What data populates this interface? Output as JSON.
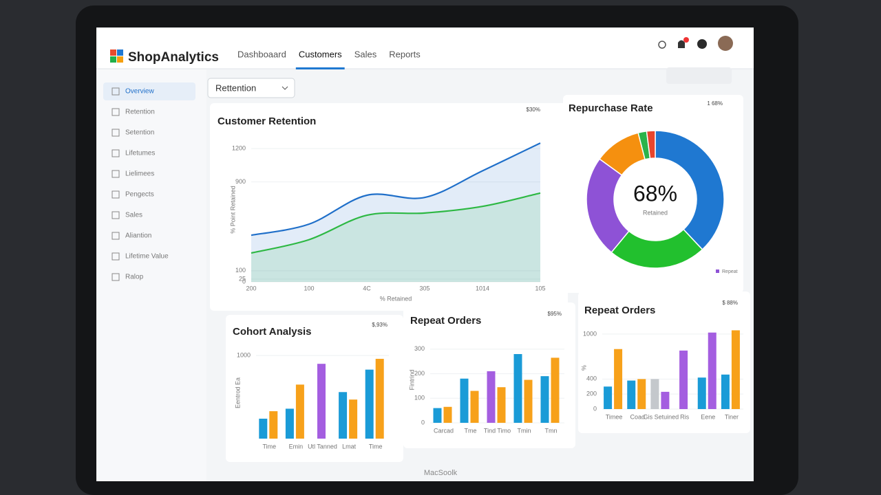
{
  "app": {
    "brand": "ShopAnalytics",
    "nav": [
      "Dashboaard",
      "Customers",
      "Sales",
      "Reports"
    ],
    "active_nav": 1,
    "filter": "Rettention",
    "sidebar": [
      "Overview",
      "Retention",
      "Setention",
      "Lifetumes",
      "Lielimees",
      "Pengects",
      "Sales",
      "Aliantion",
      "Lifetime Value",
      "Ralop"
    ],
    "active_sidebar": 0,
    "device": "MacSoolk"
  },
  "chart_data": [
    {
      "type": "line",
      "title": "Customer Retention",
      "badge": "$30%",
      "x_label": "% Retained",
      "y_label": "% Point Retained",
      "categories": [
        "200",
        "100",
        "4C",
        "305",
        "1014",
        "105"
      ],
      "ylim": [
        0,
        1300
      ],
      "yticks": [
        0,
        25,
        100,
        900,
        1200
      ],
      "series": [
        {
          "color": "#1f6fc9",
          "values": [
            420,
            520,
            780,
            760,
            1000,
            1250
          ]
        },
        {
          "color": "#2db843",
          "values": [
            260,
            380,
            600,
            620,
            680,
            800
          ]
        }
      ]
    },
    {
      "type": "donut",
      "title": "Repurchase Rate",
      "badge": "1 68%",
      "center_value": "68%",
      "center_label": "Retained",
      "legend_label": "Repeat",
      "legend_color": "#8e52d6",
      "values": [
        38,
        23,
        24,
        11,
        2,
        2
      ],
      "colors": [
        "#1f78d1",
        "#22c02e",
        "#8e52d6",
        "#f5900f",
        "#2cb34a",
        "#e8452c"
      ]
    },
    {
      "type": "bar",
      "title": "Cohort Analysis",
      "badge": "$,93%",
      "y_label": "Eentrod Ea",
      "categories": [
        "Time",
        "Emin",
        "Utl Tanned",
        "Lmat",
        "Time"
      ],
      "ylim": [
        0,
        1100
      ],
      "yticks": [
        1000
      ],
      "series": [
        {
          "color": "#1a9bd7",
          "values": [
            240,
            360,
            null,
            560,
            830
          ]
        },
        {
          "color": "#f7a11a",
          "values": [
            330,
            650,
            null,
            470,
            960
          ]
        },
        {
          "color": "#a45ee0",
          "values": [
            null,
            null,
            900,
            null,
            null
          ]
        }
      ]
    },
    {
      "type": "bar",
      "title": "Repeat Orders",
      "badge": "$95%",
      "y_label": "Fintrind",
      "categories": [
        "Carcad",
        "Tme",
        "Tind Timo",
        "Tmin",
        "Tmn"
      ],
      "ylim": [
        0,
        350
      ],
      "yticks": [
        0,
        100,
        200,
        300
      ],
      "series": [
        {
          "color": "#1a9bd7",
          "values": [
            60,
            180,
            null,
            280,
            190
          ]
        },
        {
          "color": "#a45ee0",
          "values": [
            null,
            null,
            210,
            null,
            null
          ]
        },
        {
          "color": "#f7a11a",
          "values": [
            65,
            130,
            145,
            175,
            265
          ]
        }
      ]
    },
    {
      "type": "bar",
      "title": "Repeat Orders",
      "badge": "$ 88%",
      "y_label": "%",
      "categories": [
        "Timee",
        "Coad",
        "Gis Setuined",
        "Ris",
        "Eene",
        "Tiner"
      ],
      "ylim": [
        0,
        1100
      ],
      "yticks": [
        0,
        200,
        400,
        1000
      ],
      "series": [
        {
          "color": "#1a9bd7",
          "values": [
            300,
            380,
            null,
            null,
            420,
            460
          ]
        },
        {
          "color": "#f7a11a",
          "values": [
            800,
            400,
            null,
            null,
            null,
            1050
          ]
        },
        {
          "color": "#c4c8cc",
          "values": [
            null,
            null,
            400,
            null,
            null,
            null
          ]
        },
        {
          "color": "#a45ee0",
          "values": [
            null,
            null,
            230,
            780,
            1020,
            null
          ]
        }
      ]
    }
  ]
}
